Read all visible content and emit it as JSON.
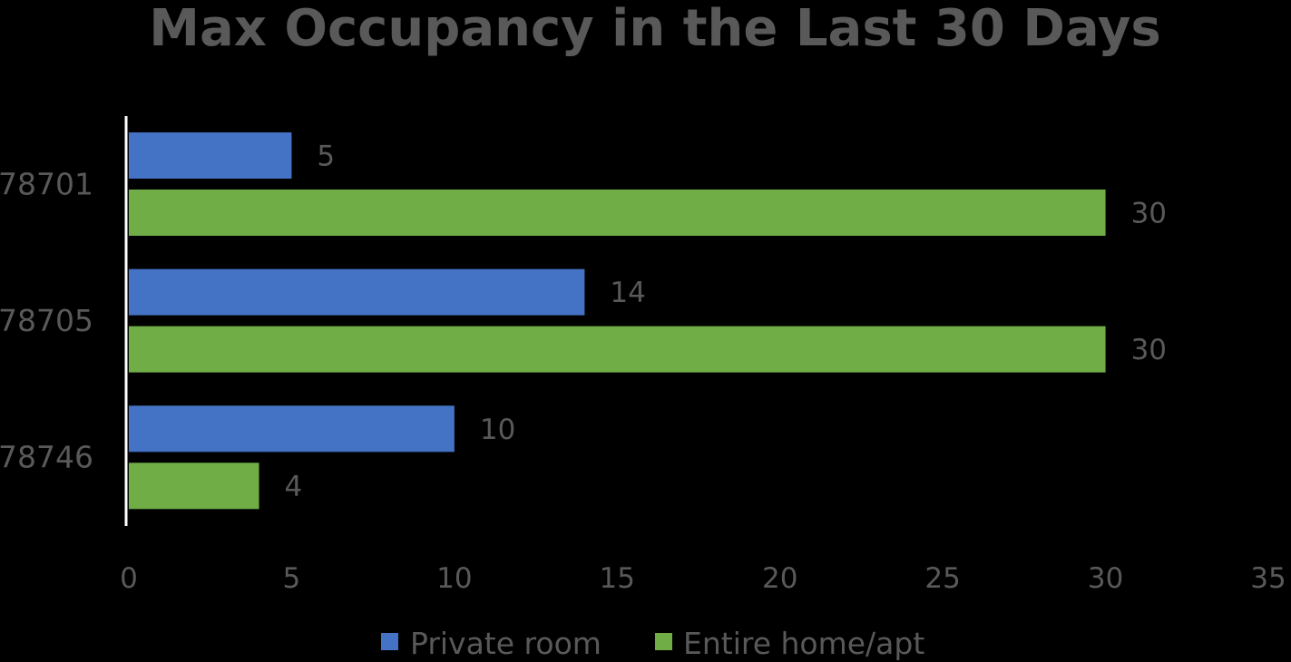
{
  "chart_data": {
    "type": "bar",
    "orientation": "horizontal",
    "title": "Max Occupancy in the Last 30 Days",
    "categories": [
      "78701",
      "78705",
      "78746"
    ],
    "series": [
      {
        "name": "Private room",
        "values": [
          5,
          14,
          10
        ],
        "color": "#4472C4"
      },
      {
        "name": "Entire home/apt",
        "values": [
          30,
          30,
          4
        ],
        "color": "#70AD47"
      }
    ],
    "xlim": [
      0,
      35
    ],
    "xticks": [
      "0",
      "5",
      "10",
      "15",
      "20",
      "25",
      "30",
      "35"
    ],
    "xlabel": "",
    "ylabel": "",
    "grid": false,
    "legend_position": "bottom",
    "data_labels": true
  },
  "colors": {
    "background": "#000000",
    "text": "#595959",
    "axis_line": "#FFFFFF"
  }
}
